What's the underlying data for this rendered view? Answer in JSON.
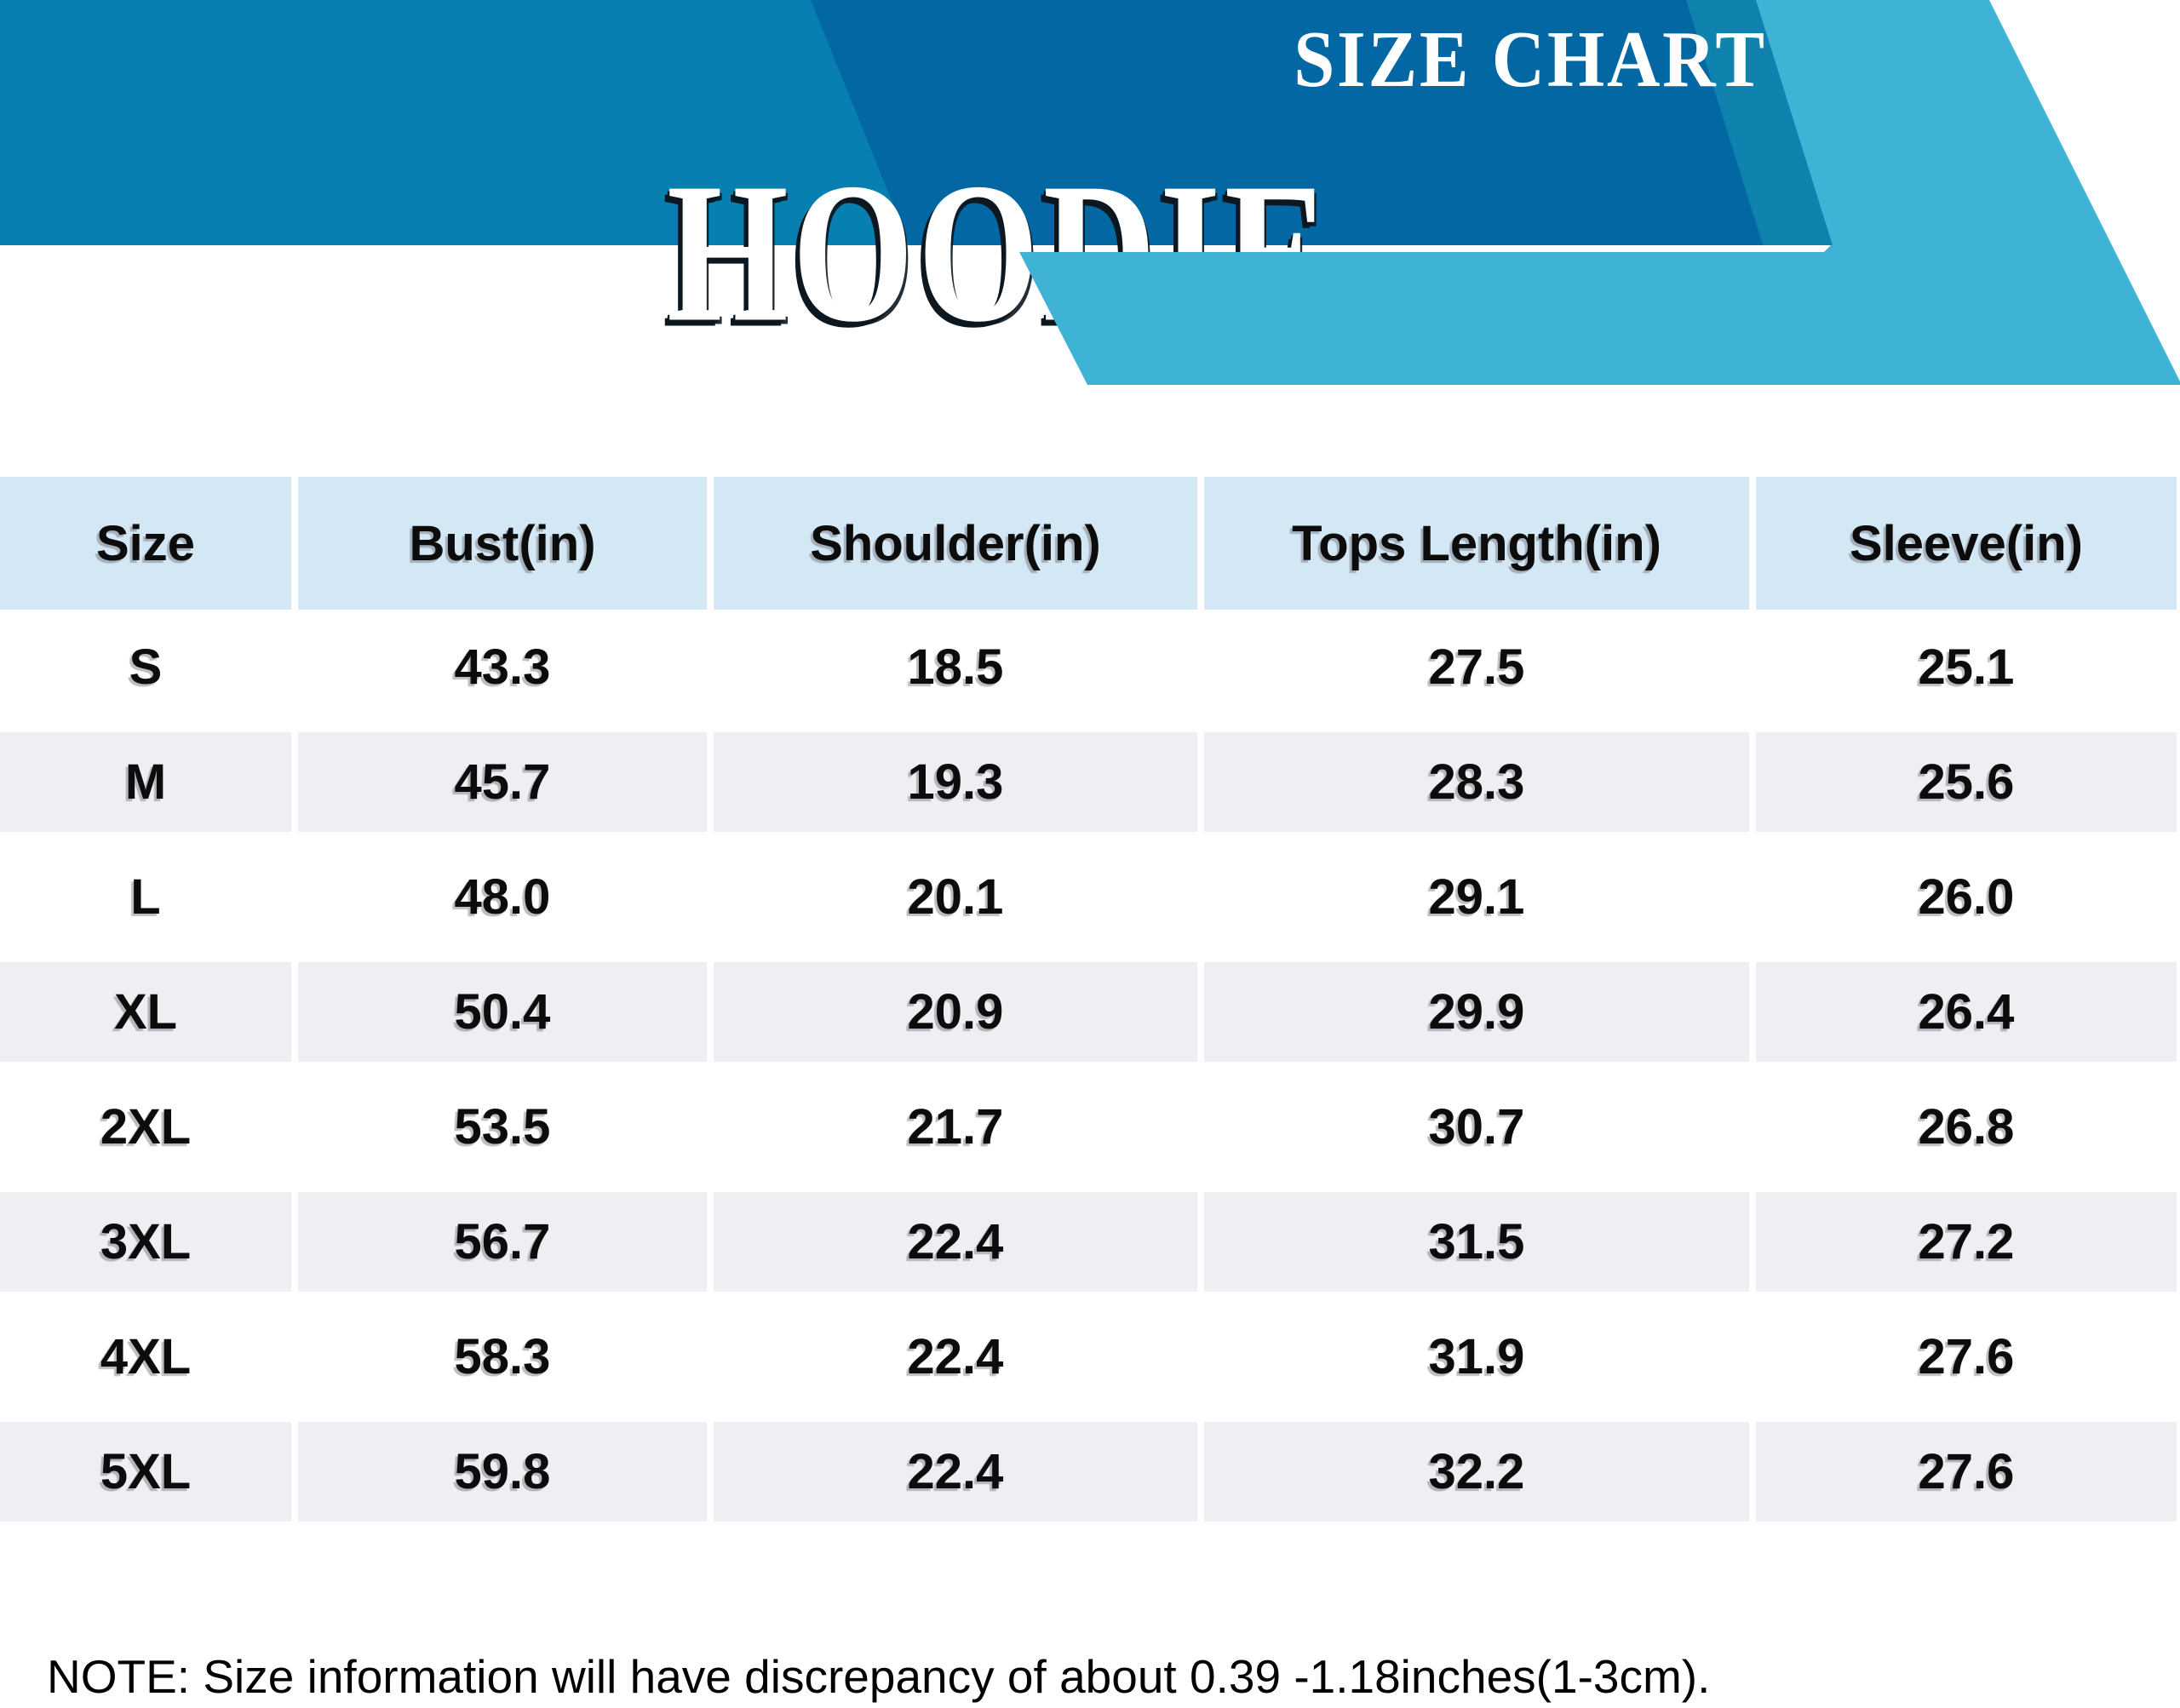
{
  "banner": {
    "title": "HOODIE",
    "subtitle": "SIZE CHART"
  },
  "colors": {
    "banner_base": "#0780b1",
    "banner_dark_band": "#0367a3",
    "banner_stripe": "#0f82ae",
    "banner_light_band": "#3fb3d6",
    "ribbon_bg": "#3fb3d6",
    "header_cell_bg": "#d4e7f4",
    "row_alt_bg": "#efeef3",
    "text": "#0c0c0c",
    "title_text": "#ffffff"
  },
  "chart_data": {
    "type": "table",
    "title": "HOODIE",
    "subtitle": "SIZE CHART",
    "columns": [
      "Size",
      "Bust(in)",
      "Shoulder(in)",
      "Tops Length(in)",
      "Sleeve(in)"
    ],
    "rows": [
      [
        "S",
        "43.3",
        "18.5",
        "27.5",
        "25.1"
      ],
      [
        "M",
        "45.7",
        "19.3",
        "28.3",
        "25.6"
      ],
      [
        "L",
        "48.0",
        "20.1",
        "29.1",
        "26.0"
      ],
      [
        "XL",
        "50.4",
        "20.9",
        "29.9",
        "26.4"
      ],
      [
        "2XL",
        "53.5",
        "21.7",
        "30.7",
        "26.8"
      ],
      [
        "3XL",
        "56.7",
        "22.4",
        "31.5",
        "27.2"
      ],
      [
        "4XL",
        "58.3",
        "22.4",
        "31.9",
        "27.6"
      ],
      [
        "5XL",
        "59.8",
        "22.4",
        "32.2",
        "27.6"
      ]
    ],
    "units": "inches",
    "legend_position": "none",
    "grid": false
  },
  "note": "NOTE: Size information will have discrepancy of about 0.39 -1.18inches(1-3cm)."
}
